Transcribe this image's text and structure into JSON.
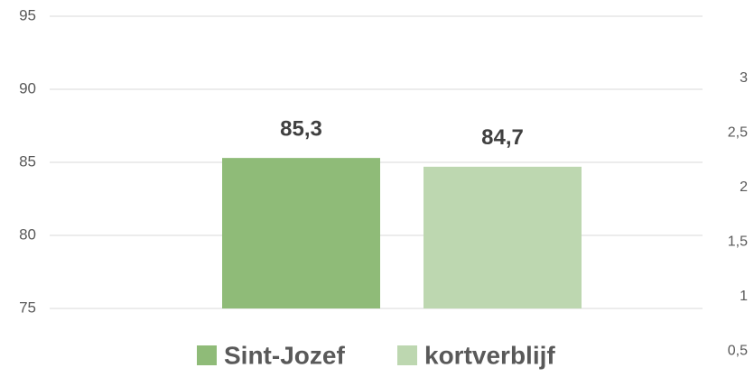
{
  "chart_data": {
    "type": "bar",
    "categories": [
      null
    ],
    "series": [
      {
        "name": "Sint-Jozef",
        "color": "#8fbb78",
        "values": [
          85.3
        ],
        "value_labels": [
          "85,3"
        ]
      },
      {
        "name": "kortverblijf",
        "color": "#bdd7b0",
        "values": [
          84.7
        ],
        "value_labels": [
          "84,7"
        ]
      }
    ],
    "ylim": [
      75,
      95
    ],
    "yticks": [
      75,
      80,
      85,
      90,
      95
    ],
    "y2lim": [
      0.89,
      3.57
    ],
    "y2ticks": [
      {
        "value": 0.5,
        "label": "0,5"
      },
      1,
      {
        "value": 1.5,
        "label": "1,5"
      },
      2,
      {
        "value": 2.5,
        "label": "2,5"
      },
      3
    ],
    "grid": true,
    "legend": "bottom"
  }
}
